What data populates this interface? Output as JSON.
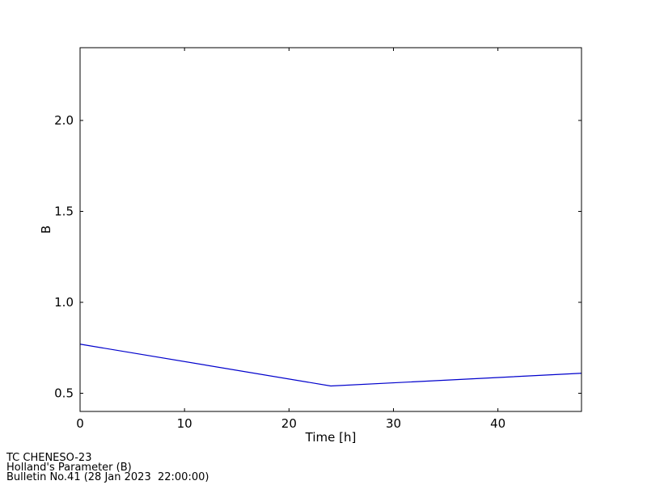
{
  "chart_data": {
    "type": "line",
    "xlabel": "Time [h]",
    "ylabel": "B",
    "x": [
      0,
      24,
      48
    ],
    "values": [
      0.77,
      0.54,
      0.61
    ],
    "color": "#0000cc",
    "xlim": [
      0,
      48
    ],
    "xticks": [
      0,
      10,
      20,
      30,
      40
    ],
    "ylim": [
      0.4,
      2.4
    ],
    "yticks": [
      0.5,
      {
        "value": 1.0,
        "label": "1.0"
      },
      1.5,
      {
        "value": 2.0,
        "label": "2.0"
      }
    ],
    "grid": false,
    "annotations": [
      "TC CHENESO-23",
      "Holland's Parameter (B)",
      "Bulletin No.41 (28 Jan 2023  22:00:00)"
    ]
  }
}
